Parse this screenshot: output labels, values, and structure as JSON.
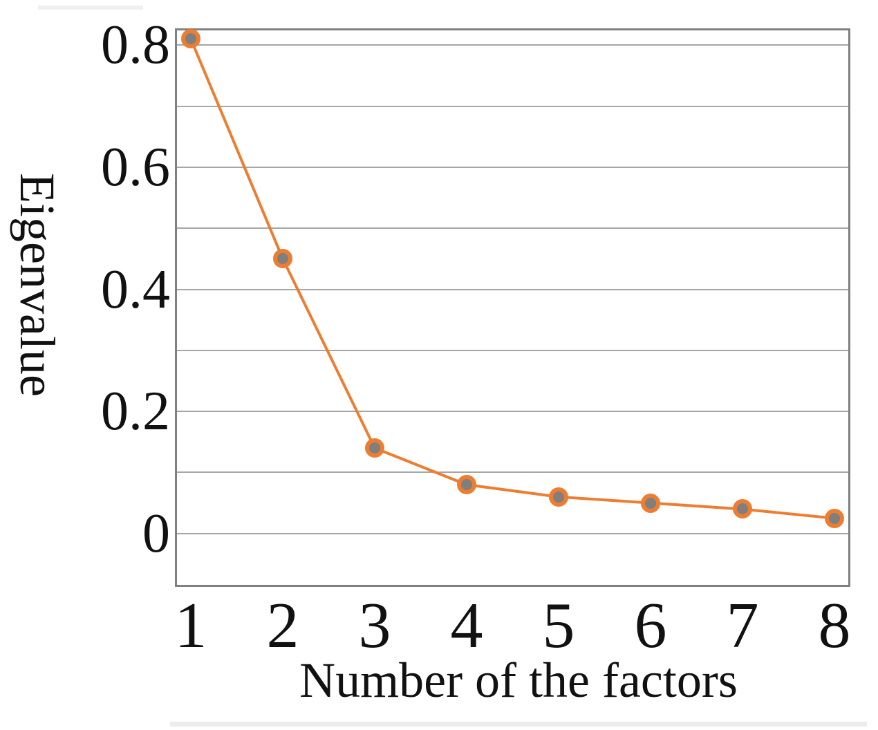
{
  "chart_data": {
    "type": "line",
    "x": [
      1,
      2,
      3,
      4,
      5,
      6,
      7,
      8
    ],
    "x_labels": [
      "1",
      "2",
      "3",
      "4",
      "5",
      "6",
      "7",
      "8"
    ],
    "values": [
      0.81,
      0.45,
      0.14,
      0.08,
      0.06,
      0.05,
      0.04,
      0.025
    ],
    "series_name": "Eigenvalue",
    "title": "",
    "xlabel": "Number of the factors",
    "ylabel": "Eigenvalue",
    "yticks": [
      {
        "value": 0,
        "label": "0"
      },
      {
        "value": 0.2,
        "label": "0.2"
      },
      {
        "value": 0.4,
        "label": "0.4"
      },
      {
        "value": 0.6,
        "label": "0.6"
      },
      {
        "value": 0.8,
        "label": "0.8"
      }
    ],
    "grid_values": [
      0,
      0.1,
      0.2,
      0.3,
      0.4,
      0.5,
      0.6,
      0.7,
      0.8
    ],
    "ylim": [
      -0.084,
      0.824
    ],
    "grid": "horizontal",
    "legend_position": "none",
    "colors": {
      "line": "#ED7D31",
      "marker_fill": "#7F7F7F",
      "marker_ring": "#ED7D31",
      "grid": "#A6A6A6",
      "frame": "#808080",
      "text": "#111111"
    }
  }
}
